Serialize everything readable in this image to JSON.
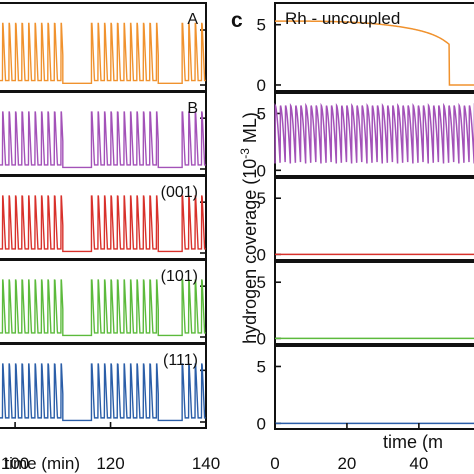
{
  "chart_data": {
    "left_figure": {
      "type": "line",
      "xlabel": "time (min)",
      "x_ticks": [
        "100",
        "120",
        "140"
      ],
      "ylim": [
        0,
        6
      ],
      "panels": [
        {
          "label": "A",
          "color": "#f0922e"
        },
        {
          "label": "B",
          "color": "#a352b8"
        },
        {
          "label": "(001)",
          "color": "#d8312b"
        },
        {
          "label": "(101)",
          "color": "#5cba3c"
        },
        {
          "label": "(111)",
          "color": "#2b5ea8"
        }
      ],
      "segments": [
        {
          "state": "oscillating",
          "x_from": 96,
          "x_to": 110
        },
        {
          "state": "low",
          "x_from": 110,
          "x_to": 116
        },
        {
          "state": "oscillating",
          "x_from": 116,
          "x_to": 130
        },
        {
          "state": "low",
          "x_from": 130,
          "x_to": 135
        },
        {
          "state": "oscillating",
          "x_from": 135,
          "x_to": 140
        }
      ]
    },
    "right_figure": {
      "letter": "c",
      "type": "line",
      "xlabel": "time (m",
      "ylabel": "hydrogen coverage (10",
      "ylabel_sup": "-3",
      "ylabel_tail": " ML)",
      "x_ticks": [
        "0",
        "20",
        "40"
      ],
      "xlim": [
        0,
        57
      ],
      "y_ticks": [
        "0",
        "5"
      ],
      "ylim": [
        -0.5,
        6.8
      ],
      "panels": [
        {
          "label": "Rh - uncoupled",
          "color": "#f0922e",
          "behavior": "decay",
          "start": 5.3,
          "drop_at": 48.5
        },
        {
          "label": "",
          "color": "#a352b8",
          "behavior": "oscillation",
          "high": 5.7,
          "low": 0.6,
          "period": 1.42
        },
        {
          "label": "",
          "color": "#d8312b",
          "behavior": "flat",
          "value": 0
        },
        {
          "label": "",
          "color": "#5cba3c",
          "behavior": "flat",
          "value": 0
        },
        {
          "label": "",
          "color": "#2b5ea8",
          "behavior": "flat",
          "value": 0
        }
      ]
    }
  }
}
